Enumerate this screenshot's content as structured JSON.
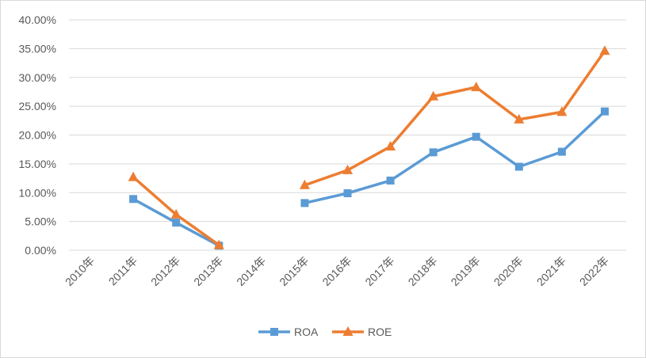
{
  "chart_data": {
    "type": "line",
    "title": "",
    "xlabel": "",
    "ylabel": "",
    "categories": [
      "2010年",
      "2011年",
      "2012年",
      "2013年",
      "2014年",
      "2015年",
      "2016年",
      "2017年",
      "2018年",
      "2019年",
      "2020年",
      "2021年",
      "2022年"
    ],
    "ylim": [
      0,
      40
    ],
    "yticks": [
      "0.00%",
      "5.00%",
      "10.00%",
      "15.00%",
      "20.00%",
      "25.00%",
      "30.00%",
      "35.00%",
      "40.00%"
    ],
    "grid": true,
    "legend": "bottom",
    "series": [
      {
        "name": "ROA",
        "color": "#5b9bd5",
        "marker": "square",
        "values": [
          null,
          8.9,
          4.8,
          0.8,
          null,
          8.2,
          9.9,
          12.1,
          17.0,
          19.7,
          14.5,
          17.1,
          24.1
        ]
      },
      {
        "name": "ROE",
        "color": "#ed7d31",
        "marker": "triangle",
        "values": [
          null,
          12.7,
          6.2,
          0.9,
          null,
          11.3,
          13.9,
          18.0,
          26.7,
          28.3,
          22.7,
          24.0,
          34.6
        ]
      }
    ]
  }
}
